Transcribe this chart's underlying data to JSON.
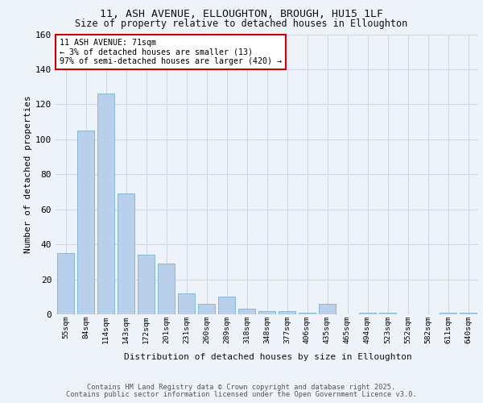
{
  "title1": "11, ASH AVENUE, ELLOUGHTON, BROUGH, HU15 1LF",
  "title2": "Size of property relative to detached houses in Elloughton",
  "xlabel": "Distribution of detached houses by size in Elloughton",
  "ylabel": "Number of detached properties",
  "footer1": "Contains HM Land Registry data © Crown copyright and database right 2025.",
  "footer2": "Contains public sector information licensed under the Open Government Licence v3.0.",
  "annotation_line1": "11 ASH AVENUE: 71sqm",
  "annotation_line2": "← 3% of detached houses are smaller (13)",
  "annotation_line3": "97% of semi-detached houses are larger (420) →",
  "bar_color": "#b8d0ea",
  "bar_edge_color": "#7aafd4",
  "background_color": "#eef2f9",
  "grid_color": "#d0d8e8",
  "categories": [
    "55sqm",
    "84sqm",
    "114sqm",
    "143sqm",
    "172sqm",
    "201sqm",
    "231sqm",
    "260sqm",
    "289sqm",
    "318sqm",
    "348sqm",
    "377sqm",
    "406sqm",
    "435sqm",
    "465sqm",
    "494sqm",
    "523sqm",
    "552sqm",
    "582sqm",
    "611sqm",
    "640sqm"
  ],
  "values": [
    35,
    105,
    126,
    69,
    34,
    29,
    12,
    6,
    10,
    3,
    2,
    2,
    1,
    6,
    0,
    1,
    1,
    0,
    0,
    1,
    1
  ],
  "ylim": [
    0,
    160
  ],
  "yticks": [
    0,
    20,
    40,
    60,
    80,
    100,
    120,
    140,
    160
  ]
}
